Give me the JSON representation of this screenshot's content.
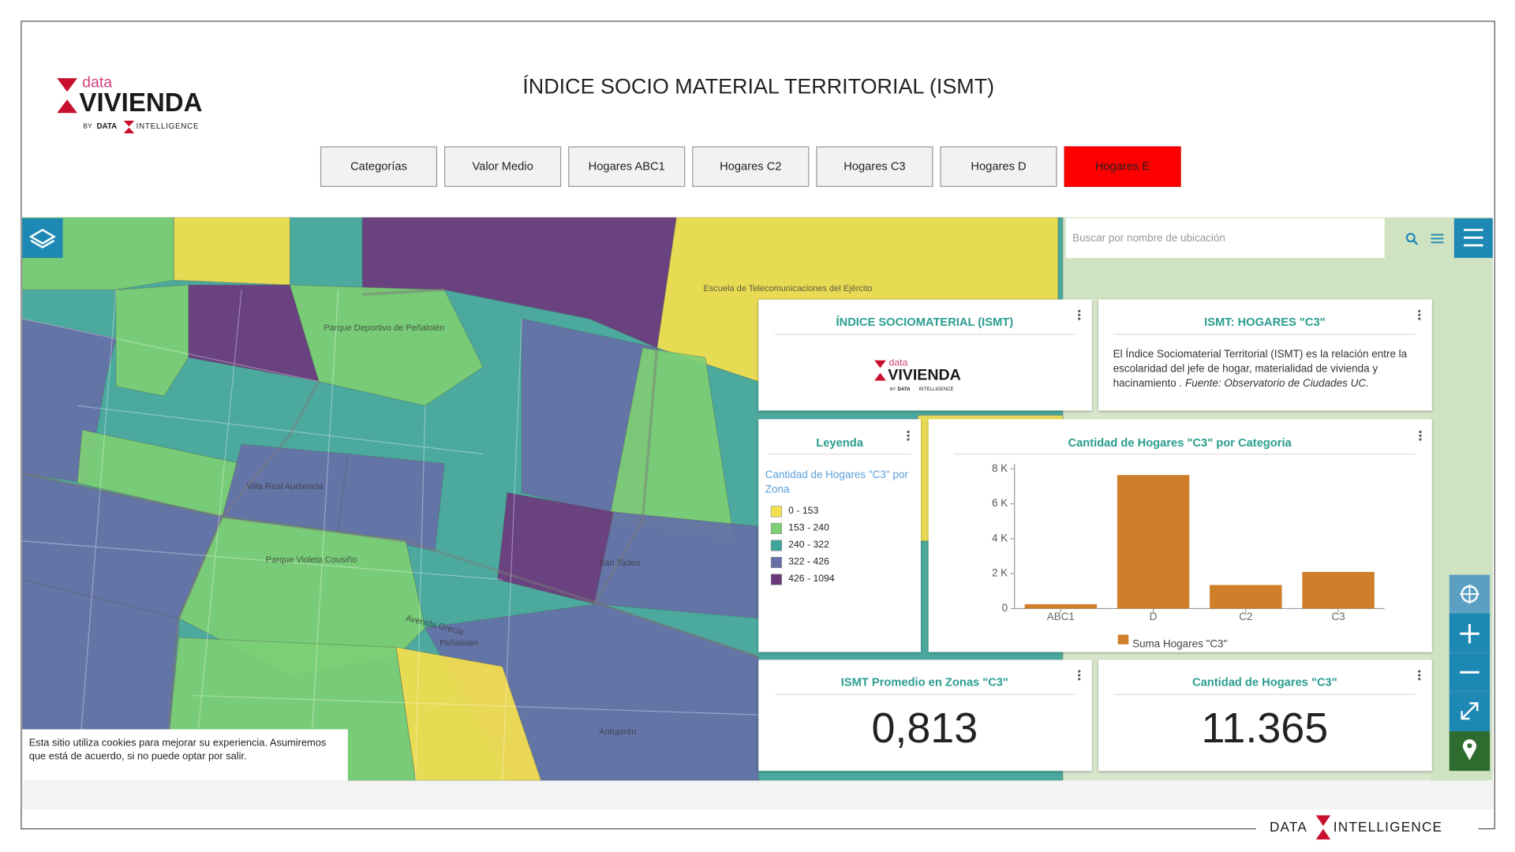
{
  "header": {
    "title": "ÍNDICE SOCIO MATERIAL TERRITORIAL (ISMT)",
    "logo": {
      "data": "data",
      "vivienda": "VIVIENDA",
      "by": "BY",
      "brand1": "DATA",
      "brand2": "INTELLIGENCE"
    }
  },
  "tabs": [
    "Categorías",
    "Valor Medio",
    "Hogares ABC1",
    "Hogares C2",
    "Hogares C3",
    "Hogares D",
    "Hogares E"
  ],
  "active_tab": "Hogares E",
  "search": {
    "placeholder": "Buscar por nombre de ubicación"
  },
  "map": {
    "labels": [
      "Avenida Grecia",
      "Peñalolén",
      "Parque Violeta Cousiño",
      "Escuela de Telecomunicaciones del Ejército",
      "Villa Real Audiencia",
      "San Tadeo",
      "Antupirén",
      "Parque Deportivo de Peñalolén"
    ]
  },
  "widgets": {
    "ismt": {
      "title": "ÍNDICE SOCIOMATERIAL (ISMT)"
    },
    "description": {
      "title": "ISMT: HOGARES \"C3\"",
      "text": "El Índice Sociomaterial Territorial (ISMT) es la relación entre la escolaridad del jefe de hogar, materialidad de vivienda y hacinamiento .",
      "source": "Fuente: Observatorio de Ciudades UC."
    },
    "kpi_ismt": {
      "title": "ISMT Promedio en Zonas \"C3\"",
      "value": "0,813"
    },
    "kpi_hogares": {
      "title": "Cantidad de Hogares \"C3\"",
      "value": "11.365"
    }
  },
  "legend": {
    "title": "Leyenda",
    "subtitle": "Cantidad de Hogares \"C3\" por Zona",
    "items": [
      {
        "label": "0 - 153",
        "color": "#f5e04e"
      },
      {
        "label": "153 - 240",
        "color": "#7ccf74"
      },
      {
        "label": "240 - 322",
        "color": "#3fa49a"
      },
      {
        "label": "322 - 426",
        "color": "#6570a8"
      },
      {
        "label": "426 - 1094",
        "color": "#6b3a7d"
      }
    ]
  },
  "chart": {
    "type": "bar",
    "title": "Cantidad de Hogares \"C3\" por Categoria",
    "categories": [
      "ABC1",
      "D",
      "C2",
      "C3"
    ],
    "series": [
      {
        "name": "Suma Hogares \"C3\"",
        "color": "#cf7f2a",
        "values": [
          250,
          7650,
          1350,
          2100
        ]
      }
    ],
    "ylim": [
      0,
      8300
    ],
    "yticks": [
      0,
      {
        "value": 2000,
        "label": "2 K"
      },
      {
        "value": 4000,
        "label": "4 K"
      },
      {
        "value": 6000,
        "label": "6 K"
      },
      {
        "value": 8000,
        "label": "8 K"
      }
    ]
  },
  "cookie": "Esta sitio utiliza cookies para mejorar su experiencia. Asumiremos que está de acuerdo, si no puede optar por salir.",
  "footer": {
    "brand1": "DATA",
    "brand2": "INTELLIGENCE"
  }
}
